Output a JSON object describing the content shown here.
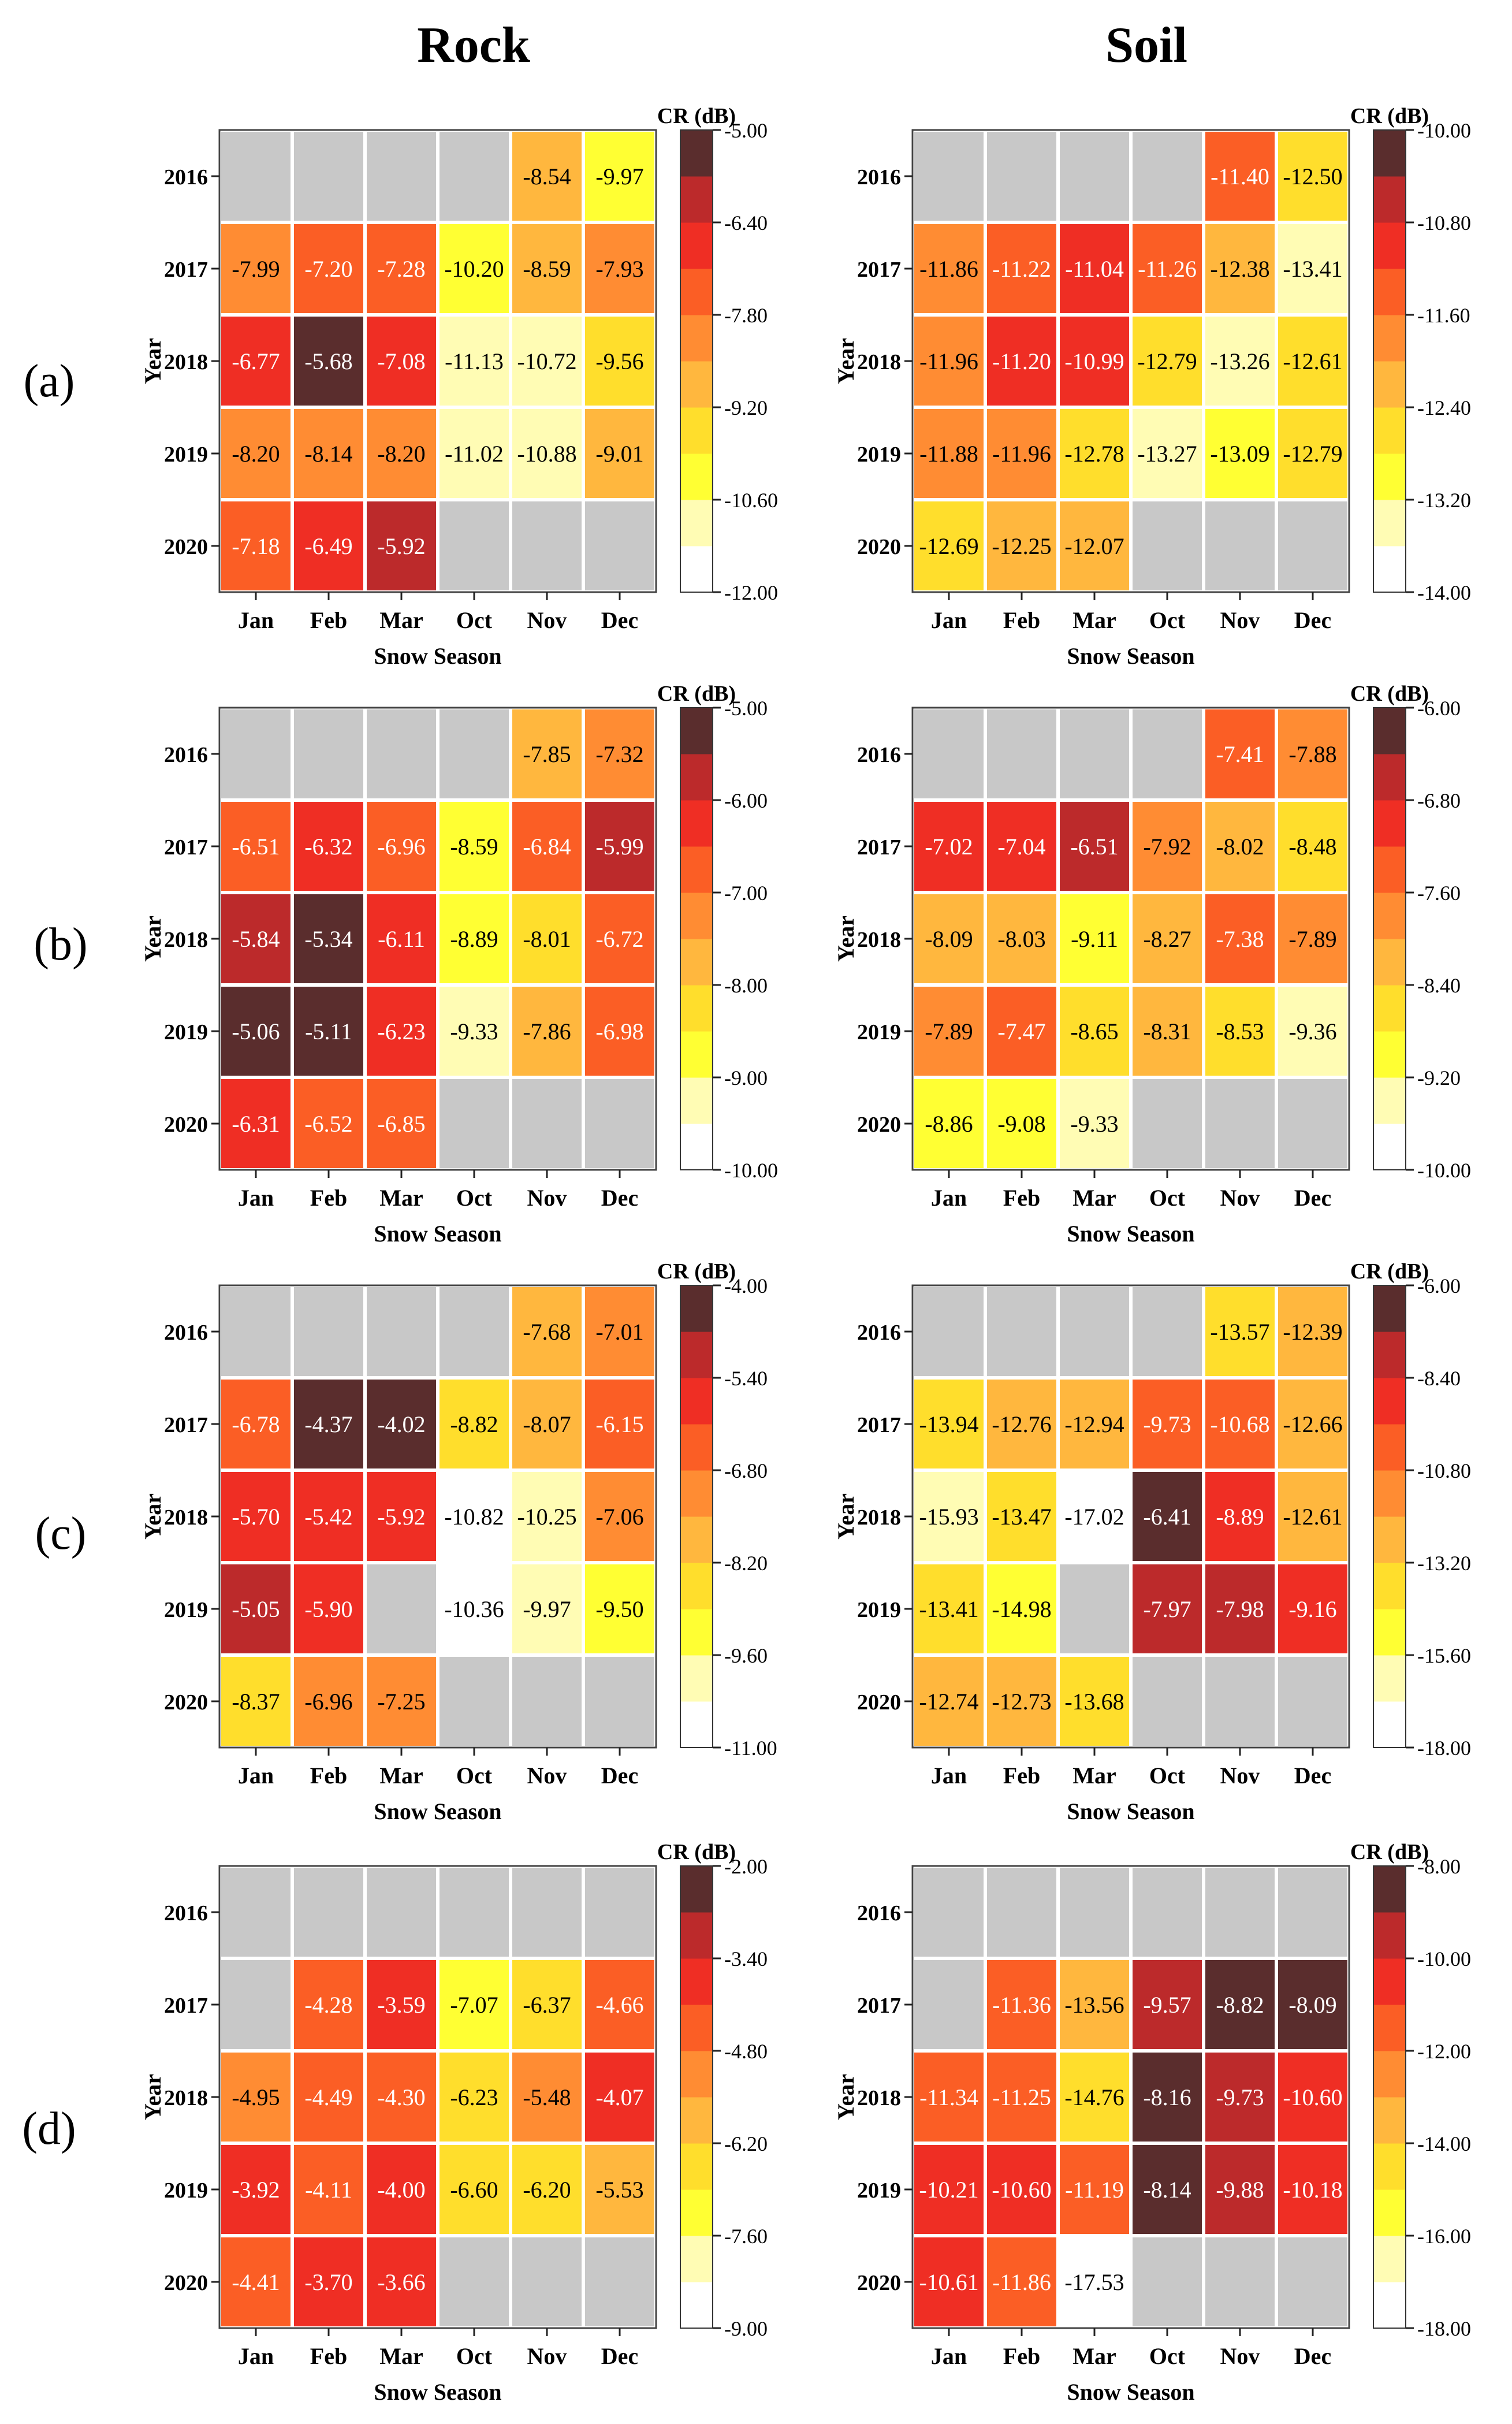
{
  "figure": {
    "column_titles": [
      "Rock",
      "Soil"
    ],
    "row_labels": [
      "(a)",
      "(b)",
      "(c)",
      "(d)"
    ],
    "missing_color": "#c8c8c8",
    "colormap": [
      "#ffffff",
      "#fffcb4",
      "#ffff33",
      "#ffde2c",
      "#ffb73e",
      "#ff8c33",
      "#fb5e25",
      "#ef2e24",
      "#bc2a2b",
      "#5a2d2d"
    ]
  },
  "chart_data": [
    {
      "type": "heatmap",
      "id": "a-rock",
      "row": "(a)",
      "column": "Rock",
      "xlabel": "Snow Season",
      "ylabel": "Year",
      "colorbar_label": "CR (dB)",
      "categories": [
        "Jan",
        "Feb",
        "Mar",
        "Oct",
        "Nov",
        "Dec"
      ],
      "years": [
        "2016",
        "2017",
        "2018",
        "2019",
        "2020"
      ],
      "vmin": -12.0,
      "vmax": -5.0,
      "colorbar_ticks": [
        "-5.00",
        "-6.40",
        "-7.80",
        "-9.20",
        "-10.60",
        "-12.00"
      ],
      "cells": [
        [
          null,
          null,
          null,
          null,
          "-8.54",
          "-9.97"
        ],
        [
          "-7.99",
          "-7.20",
          "-7.28",
          "-10.20",
          "-8.59",
          "-7.93"
        ],
        [
          "-6.77",
          "-5.68",
          "-7.08",
          "-11.13",
          "-10.72",
          "-9.56"
        ],
        [
          "-8.20",
          "-8.14",
          "-8.20",
          "-11.02",
          "-10.88",
          "-9.01"
        ],
        [
          "-7.18",
          "-6.49",
          "-5.92",
          null,
          null,
          null
        ]
      ]
    },
    {
      "type": "heatmap",
      "id": "a-soil",
      "row": "(a)",
      "column": "Soil",
      "xlabel": "Snow Season",
      "ylabel": "Year",
      "colorbar_label": "CR (dB)",
      "categories": [
        "Jan",
        "Feb",
        "Mar",
        "Oct",
        "Nov",
        "Dec"
      ],
      "years": [
        "2016",
        "2017",
        "2018",
        "2019",
        "2020"
      ],
      "vmin": -14.0,
      "vmax": -10.0,
      "colorbar_ticks": [
        "-10.00",
        "-10.80",
        "-11.60",
        "-12.40",
        "-13.20",
        "-14.00"
      ],
      "cells": [
        [
          null,
          null,
          null,
          null,
          "-11.40",
          "-12.50"
        ],
        [
          "-11.86",
          "-11.22",
          "-11.04",
          "-11.26",
          "-12.38",
          "-13.41"
        ],
        [
          "-11.96",
          "-11.20",
          "-10.99",
          "-12.79",
          "-13.26",
          "-12.61"
        ],
        [
          "-11.88",
          "-11.96",
          "-12.78",
          "-13.27",
          "-13.09",
          "-12.79"
        ],
        [
          "-12.69",
          "-12.25",
          "-12.07",
          null,
          null,
          null
        ]
      ]
    },
    {
      "type": "heatmap",
      "id": "b-rock",
      "row": "(b)",
      "column": "Rock",
      "xlabel": "Snow Season",
      "ylabel": "Year",
      "colorbar_label": "CR (dB)",
      "categories": [
        "Jan",
        "Feb",
        "Mar",
        "Oct",
        "Nov",
        "Dec"
      ],
      "years": [
        "2016",
        "2017",
        "2018",
        "2019",
        "2020"
      ],
      "vmin": -10.0,
      "vmax": -5.0,
      "colorbar_ticks": [
        "-5.00",
        "-6.00",
        "-7.00",
        "-8.00",
        "-9.00",
        "-10.00"
      ],
      "cells": [
        [
          null,
          null,
          null,
          null,
          "-7.85",
          "-7.32"
        ],
        [
          "-6.51",
          "-6.32",
          "-6.96",
          "-8.59",
          "-6.84",
          "-5.99"
        ],
        [
          "-5.84",
          "-5.34",
          "-6.11",
          "-8.89",
          "-8.01",
          "-6.72"
        ],
        [
          "-5.06",
          "-5.11",
          "-6.23",
          "-9.33",
          "-7.86",
          "-6.98"
        ],
        [
          "-6.31",
          "-6.52",
          "-6.85",
          null,
          null,
          null
        ]
      ]
    },
    {
      "type": "heatmap",
      "id": "b-soil",
      "row": "(b)",
      "column": "Soil",
      "xlabel": "Snow Season",
      "ylabel": "Year",
      "colorbar_label": "CR (dB)",
      "categories": [
        "Jan",
        "Feb",
        "Mar",
        "Oct",
        "Nov",
        "Dec"
      ],
      "years": [
        "2016",
        "2017",
        "2018",
        "2019",
        "2020"
      ],
      "vmin": -10.0,
      "vmax": -6.0,
      "colorbar_ticks": [
        "-6.00",
        "-6.80",
        "-7.60",
        "-8.40",
        "-9.20",
        "-10.00"
      ],
      "cells": [
        [
          null,
          null,
          null,
          null,
          "-7.41",
          "-7.88"
        ],
        [
          "-7.02",
          "-7.04",
          "-6.51",
          "-7.92",
          "-8.02",
          "-8.48"
        ],
        [
          "-8.09",
          "-8.03",
          "-9.11",
          "-8.27",
          "-7.38",
          "-7.89"
        ],
        [
          "-7.89",
          "-7.47",
          "-8.65",
          "-8.31",
          "-8.53",
          "-9.36"
        ],
        [
          "-8.86",
          "-9.08",
          "-9.33",
          null,
          null,
          null
        ]
      ]
    },
    {
      "type": "heatmap",
      "id": "c-rock",
      "row": "(c)",
      "column": "Rock",
      "xlabel": "Snow Season",
      "ylabel": "Year",
      "colorbar_label": "CR (dB)",
      "categories": [
        "Jan",
        "Feb",
        "Mar",
        "Oct",
        "Nov",
        "Dec"
      ],
      "years": [
        "2016",
        "2017",
        "2018",
        "2019",
        "2020"
      ],
      "vmin": -11.0,
      "vmax": -4.0,
      "colorbar_ticks": [
        "-4.00",
        "-5.40",
        "-6.80",
        "-8.20",
        "-9.60",
        "-11.00"
      ],
      "cells": [
        [
          null,
          null,
          null,
          null,
          "-7.68",
          "-7.01"
        ],
        [
          "-6.78",
          "-4.37",
          "-4.02",
          "-8.82",
          "-8.07",
          "-6.15"
        ],
        [
          "-5.70",
          "-5.42",
          "-5.92",
          "-10.82",
          "-10.25",
          "-7.06"
        ],
        [
          "-5.05",
          "-5.90",
          null,
          "-10.36",
          "-9.97",
          "-9.50"
        ],
        [
          "-8.37",
          "-6.96",
          "-7.25",
          null,
          null,
          null
        ]
      ]
    },
    {
      "type": "heatmap",
      "id": "c-soil",
      "row": "(c)",
      "column": "Soil",
      "xlabel": "Snow Season",
      "ylabel": "Year",
      "colorbar_label": "CR (dB)",
      "categories": [
        "Jan",
        "Feb",
        "Mar",
        "Oct",
        "Nov",
        "Dec"
      ],
      "years": [
        "2016",
        "2017",
        "2018",
        "2019",
        "2020"
      ],
      "vmin": -18.0,
      "vmax": -6.0,
      "colorbar_ticks": [
        "-6.00",
        "-8.40",
        "-10.80",
        "-13.20",
        "-15.60",
        "-18.00"
      ],
      "cells": [
        [
          null,
          null,
          null,
          null,
          "-13.57",
          "-12.39"
        ],
        [
          "-13.94",
          "-12.76",
          "-12.94",
          "-9.73",
          "-10.68",
          "-12.66"
        ],
        [
          "-15.93",
          "-13.47",
          "-17.02",
          "-6.41",
          "-8.89",
          "-12.61"
        ],
        [
          "-13.41",
          "-14.98",
          null,
          "-7.97",
          "-7.98",
          "-9.16"
        ],
        [
          "-12.74",
          "-12.73",
          "-13.68",
          null,
          null,
          null
        ]
      ]
    },
    {
      "type": "heatmap",
      "id": "d-rock",
      "row": "(d)",
      "column": "Rock",
      "xlabel": "Snow Season",
      "ylabel": "Year",
      "colorbar_label": "CR (dB)",
      "categories": [
        "Jan",
        "Feb",
        "Mar",
        "Oct",
        "Nov",
        "Dec"
      ],
      "years": [
        "2016",
        "2017",
        "2018",
        "2019",
        "2020"
      ],
      "vmin": -9.0,
      "vmax": -2.0,
      "colorbar_ticks": [
        "-2.00",
        "-3.40",
        "-4.80",
        "-6.20",
        "-7.60",
        "-9.00"
      ],
      "cells": [
        [
          null,
          null,
          null,
          null,
          null,
          null
        ],
        [
          null,
          "-4.28",
          "-3.59",
          "-7.07",
          "-6.37",
          "-4.66"
        ],
        [
          "-4.95",
          "-4.49",
          "-4.30",
          "-6.23",
          "-5.48",
          "-4.07"
        ],
        [
          "-3.92",
          "-4.11",
          "-4.00",
          "-6.60",
          "-6.20",
          "-5.53"
        ],
        [
          "-4.41",
          "-3.70",
          "-3.66",
          null,
          null,
          null
        ]
      ]
    },
    {
      "type": "heatmap",
      "id": "d-soil",
      "row": "(d)",
      "column": "Soil",
      "xlabel": "Snow Season",
      "ylabel": "Year",
      "colorbar_label": "CR (dB)",
      "categories": [
        "Jan",
        "Feb",
        "Mar",
        "Oct",
        "Nov",
        "Dec"
      ],
      "years": [
        "2016",
        "2017",
        "2018",
        "2019",
        "2020"
      ],
      "vmin": -18.0,
      "vmax": -8.0,
      "colorbar_ticks": [
        "-8.00",
        "-10.00",
        "-12.00",
        "-14.00",
        "-16.00",
        "-18.00"
      ],
      "cells": [
        [
          null,
          null,
          null,
          null,
          null,
          null
        ],
        [
          null,
          "-11.36",
          "-13.56",
          "-9.57",
          "-8.82",
          "-8.09"
        ],
        [
          "-11.34",
          "-11.25",
          "-14.76",
          "-8.16",
          "-9.73",
          "-10.60"
        ],
        [
          "-10.21",
          "-10.60",
          "-11.19",
          "-8.14",
          "-9.88",
          "-10.18"
        ],
        [
          "-10.61",
          "-11.86",
          "-17.53",
          null,
          null,
          null
        ]
      ]
    }
  ]
}
